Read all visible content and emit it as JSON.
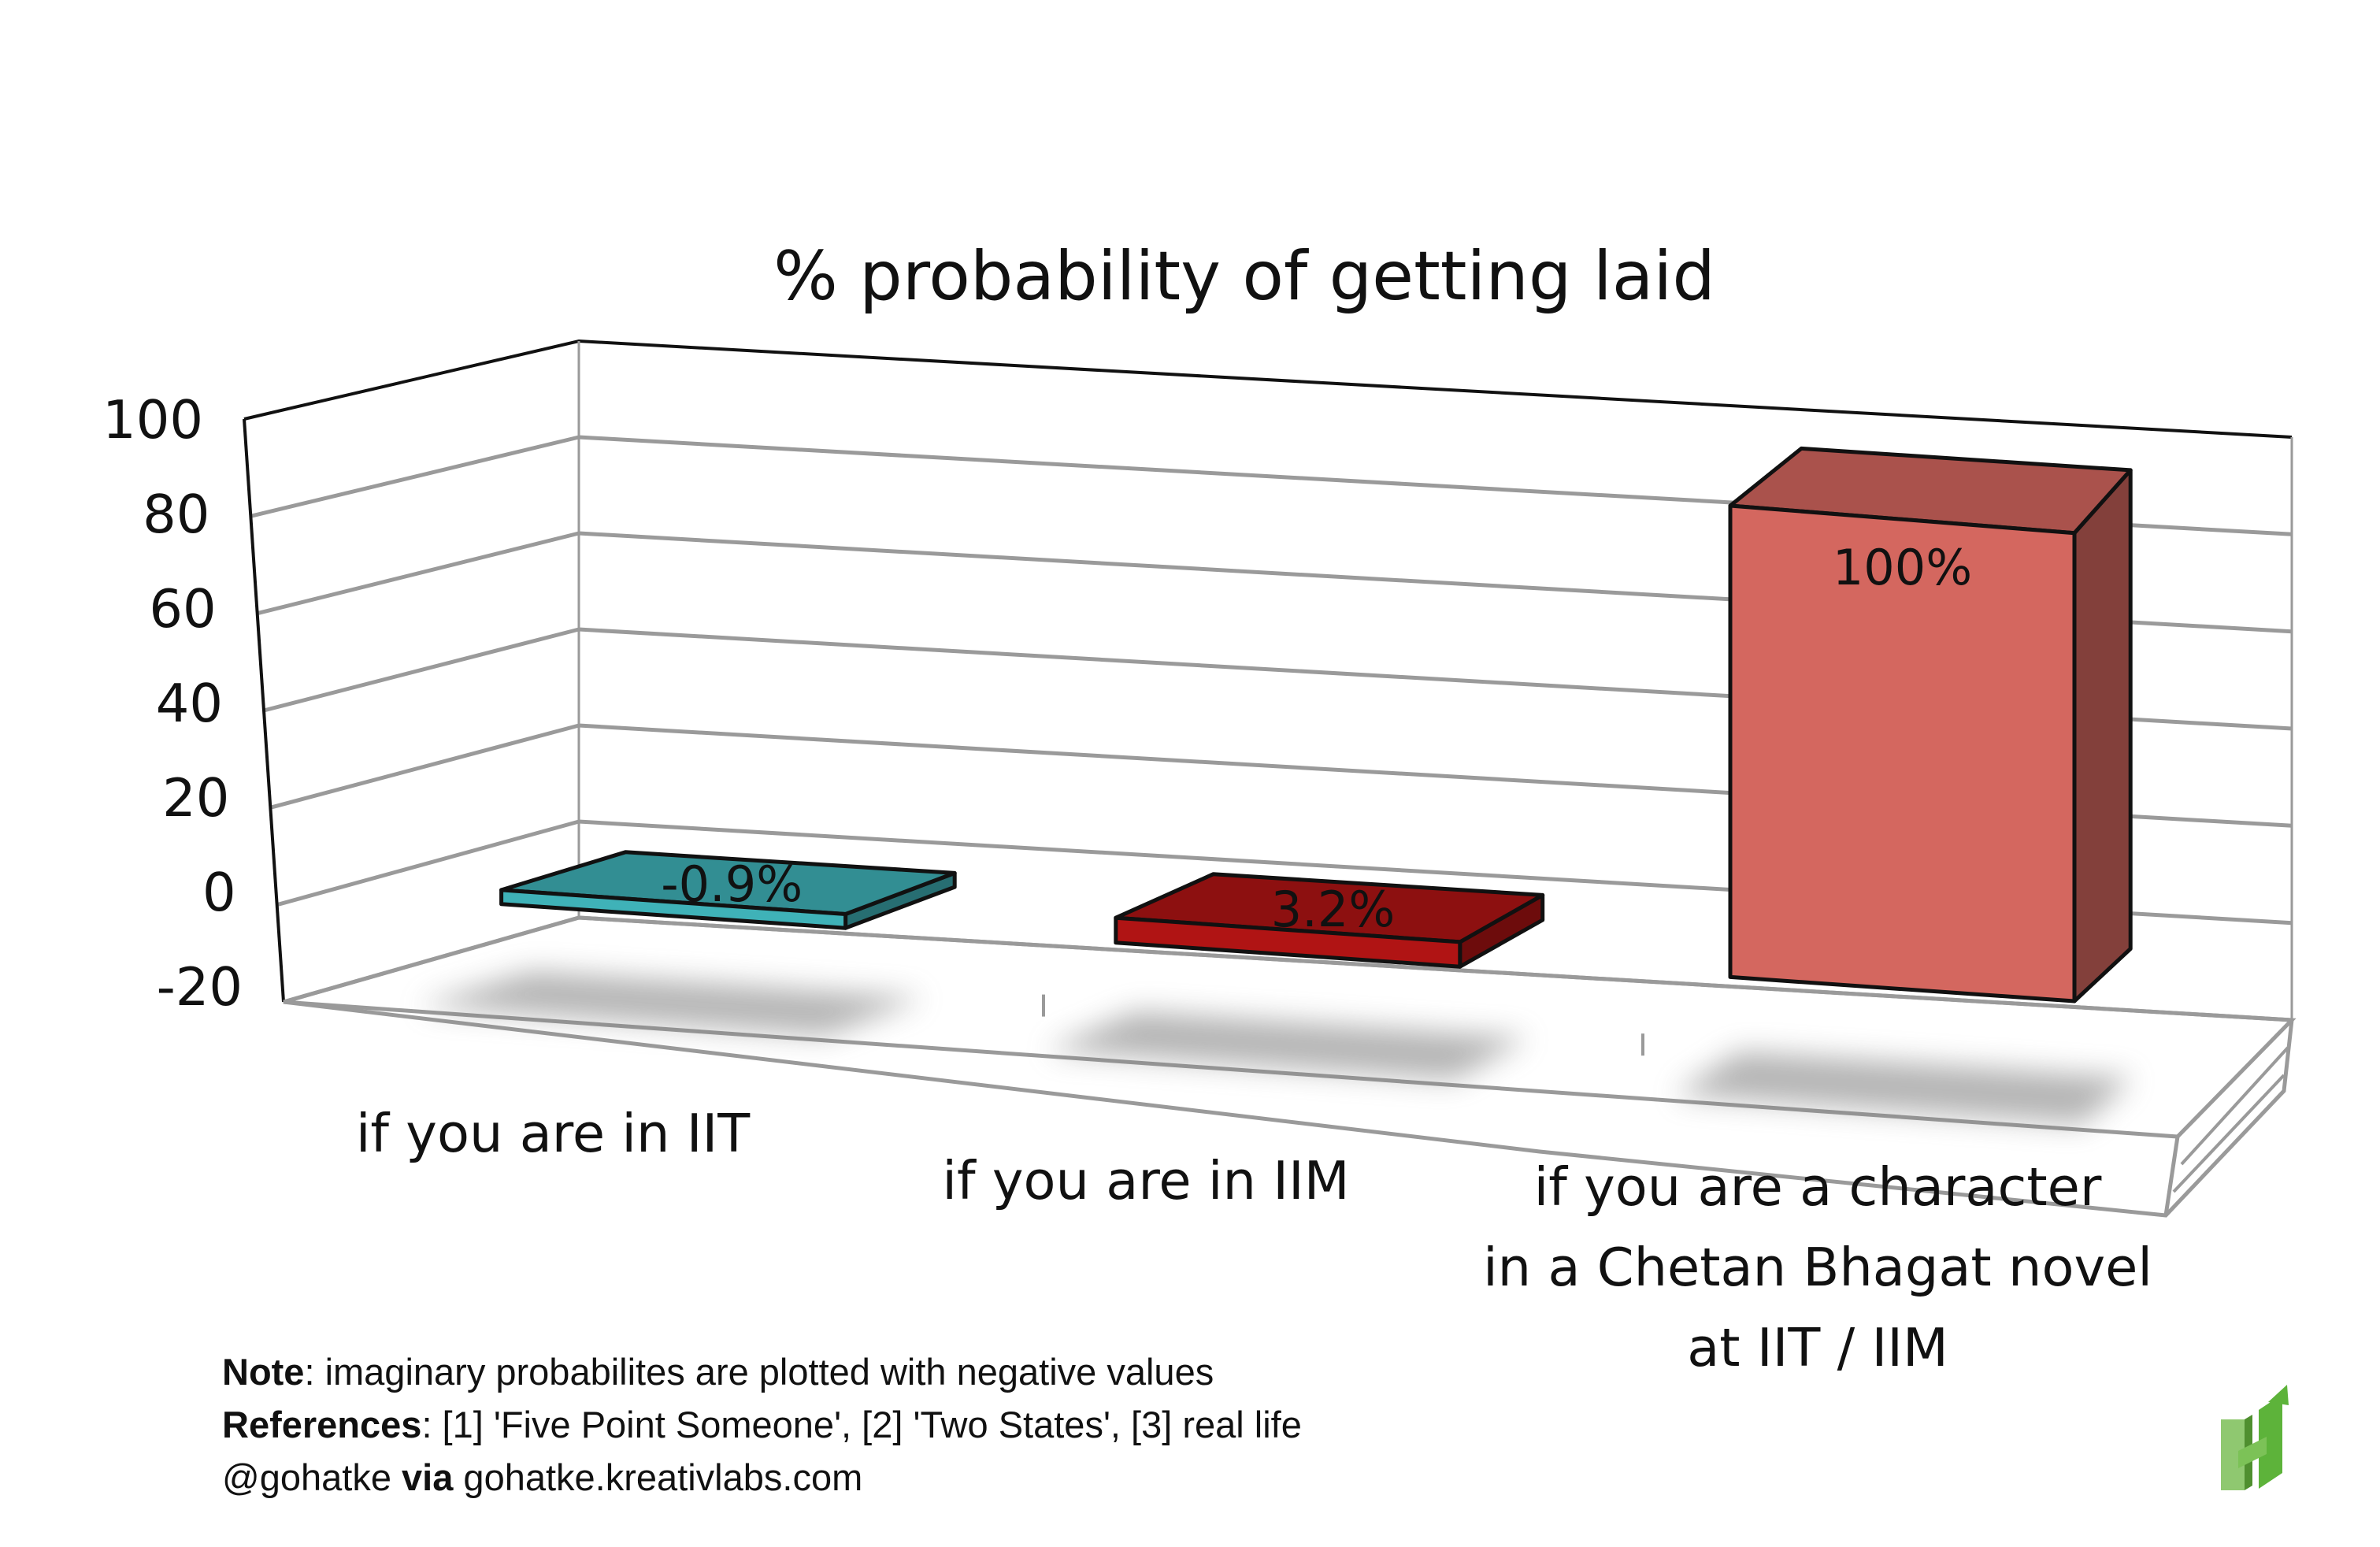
{
  "chart_data": {
    "type": "bar",
    "title": "% probability of getting laid",
    "xlabel": "",
    "ylabel": "",
    "ylim": [
      -20,
      100
    ],
    "yticks": [
      "100",
      "80",
      "60",
      "40",
      "20",
      "0",
      "-20"
    ],
    "categories": [
      [
        "if you are in IIT"
      ],
      [
        "if you are in IIM"
      ],
      [
        "if you are a character",
        "in a Chetan Bhagat novel",
        "at IIT / IIM"
      ]
    ],
    "values": [
      -0.9,
      3.2,
      100
    ],
    "data_labels": [
      "-0.9%",
      "3.2%",
      "100%"
    ],
    "colors": [
      "#3fb2b8",
      "#b01414",
      "#d4675f"
    ],
    "grid": true
  },
  "footer": {
    "note_label": "Note",
    "note_text": ": imaginary probabilites are plotted with negative values",
    "refs_label": "References",
    "refs_text": ": [1] 'Five Point Someone', [2] 'Two States', [3] real life",
    "handle": "@gohatke ",
    "via_label": "via",
    "site": " gohatke.kreativlabs.com"
  },
  "logo": {
    "icon": "green-h-logo-icon",
    "color": "#5db33a"
  }
}
